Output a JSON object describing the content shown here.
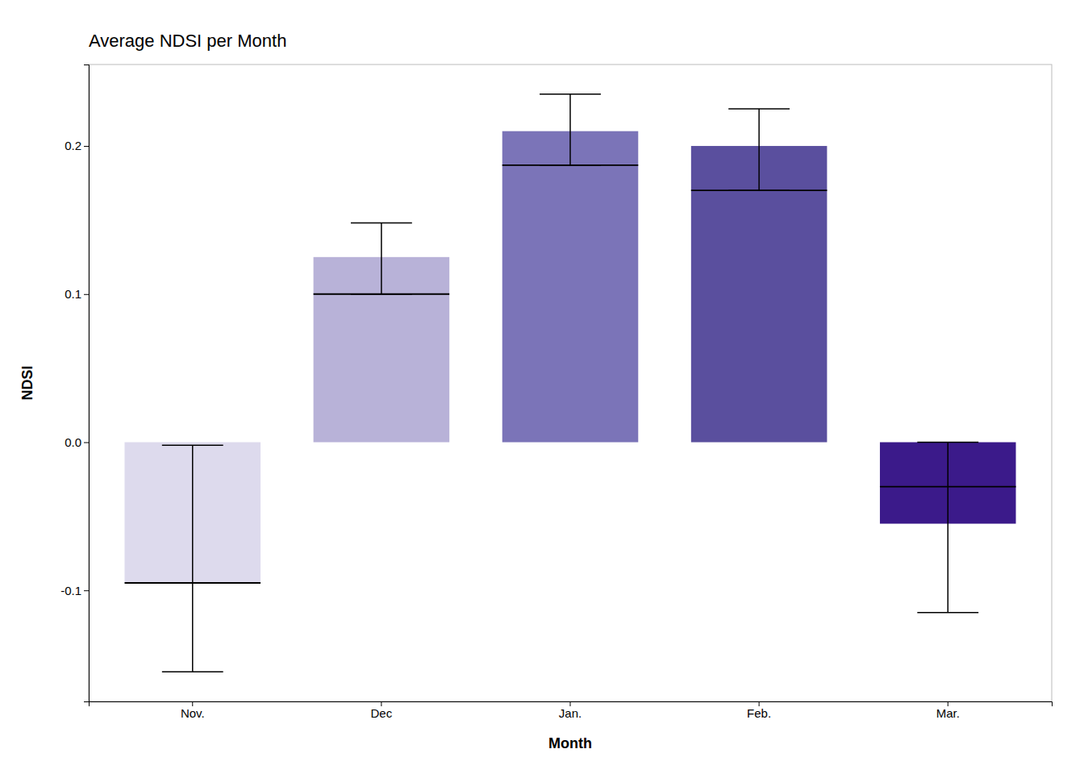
{
  "chart_data": {
    "type": "bar",
    "title": "Average NDSI per Month",
    "xlabel": "Month",
    "ylabel": "NDSI",
    "categories": [
      "Nov.",
      "Dec",
      "Jan.",
      "Feb.",
      "Mar."
    ],
    "bar_bottoms": [
      -0.095,
      0.0,
      0.0,
      0.0,
      -0.055
    ],
    "bar_tops": [
      0.0,
      0.125,
      0.21,
      0.2,
      0.0
    ],
    "means": [
      -0.095,
      0.1,
      0.187,
      0.17,
      -0.03
    ],
    "whisker_upper": [
      -0.002,
      0.148,
      0.235,
      0.225,
      0.0
    ],
    "whisker_lower": [
      -0.155,
      0.1,
      0.187,
      0.17,
      -0.115
    ],
    "colors": [
      "#dddaed",
      "#b8b2d8",
      "#7b74b8",
      "#5a4f9e",
      "#3b1a8a"
    ],
    "ylim": [
      -0.175,
      0.255
    ],
    "yticks": [
      -0.1,
      {
        "value": 0.0,
        "label": "0.0"
      },
      0.1,
      0.2
    ],
    "grid": false
  }
}
